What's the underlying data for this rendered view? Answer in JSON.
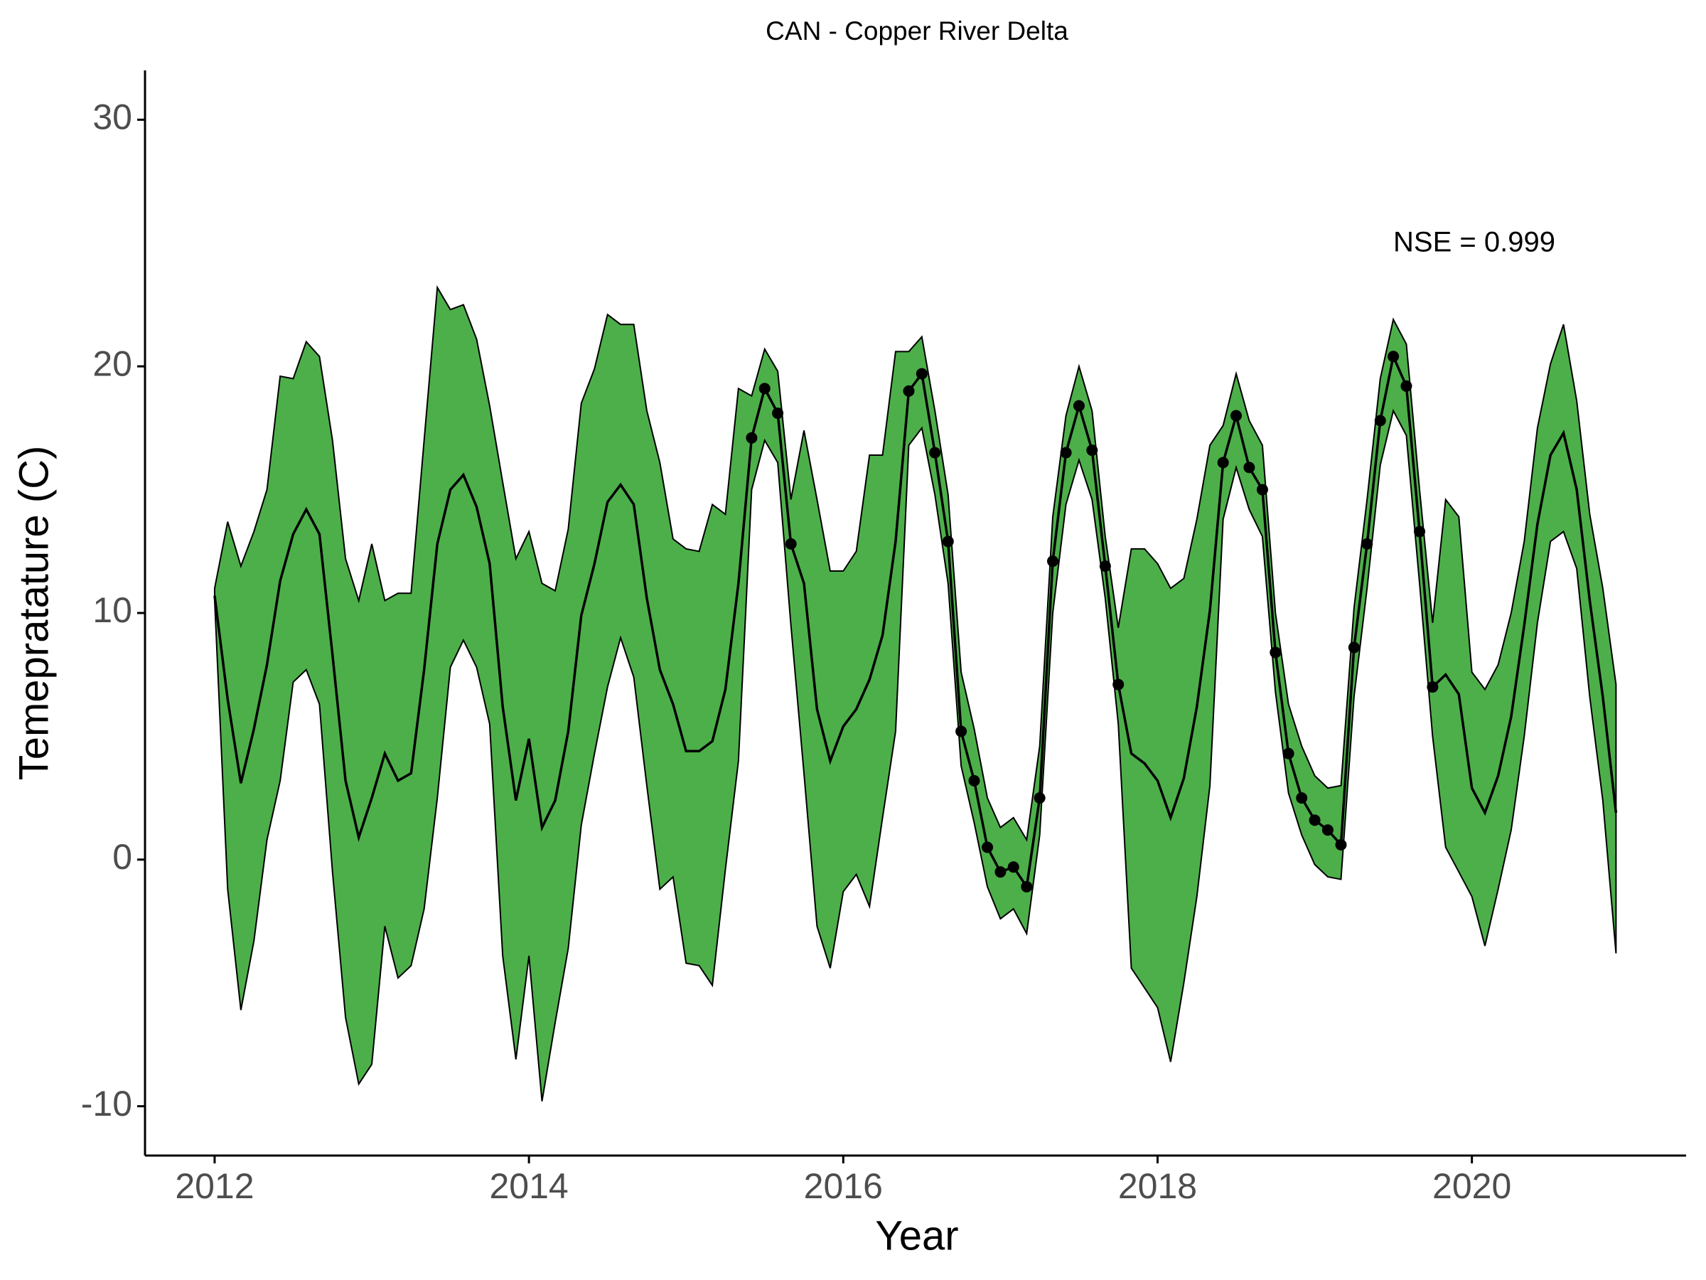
{
  "chart_data": {
    "type": "line",
    "title": "CAN - Copper River Delta",
    "x_label": "Year",
    "y_label": "Temepratature (C)",
    "annotation": "NSE = 0.999",
    "band_color": "#4daf4a",
    "line_color": "#000000",
    "xlim": [
      2011.557,
      2021.363
    ],
    "xticks": [
      2012,
      2014,
      2016,
      2018,
      2020
    ],
    "ylim": [
      -12,
      32
    ],
    "yticks": [
      -10,
      0,
      10,
      20,
      30
    ],
    "x": [
      2012,
      2012.083,
      2012.167,
      2012.25,
      2012.333,
      2012.417,
      2012.5,
      2012.583,
      2012.667,
      2012.75,
      2012.833,
      2012.917,
      2013,
      2013.083,
      2013.167,
      2013.25,
      2013.333,
      2013.417,
      2013.5,
      2013.583,
      2013.667,
      2013.75,
      2013.833,
      2013.917,
      2014,
      2014.083,
      2014.167,
      2014.25,
      2014.333,
      2014.417,
      2014.5,
      2014.583,
      2014.667,
      2014.75,
      2014.833,
      2014.917,
      2015,
      2015.083,
      2015.167,
      2015.25,
      2015.333,
      2015.417,
      2015.5,
      2015.583,
      2015.667,
      2015.75,
      2015.833,
      2015.917,
      2016,
      2016.083,
      2016.167,
      2016.25,
      2016.333,
      2016.417,
      2016.5,
      2016.583,
      2016.667,
      2016.75,
      2016.833,
      2016.917,
      2017,
      2017.083,
      2017.167,
      2017.25,
      2017.333,
      2017.417,
      2017.5,
      2017.583,
      2017.667,
      2017.75,
      2017.833,
      2017.917,
      2018,
      2018.083,
      2018.167,
      2018.25,
      2018.333,
      2018.417,
      2018.5,
      2018.583,
      2018.667,
      2018.75,
      2018.833,
      2018.917,
      2019,
      2019.083,
      2019.167,
      2019.25,
      2019.333,
      2019.417,
      2019.5,
      2019.583,
      2019.667,
      2019.75,
      2019.833,
      2019.917,
      2020,
      2020.083,
      2020.167,
      2020.25,
      2020.333,
      2020.417,
      2020.5,
      2020.583,
      2020.667,
      2020.75,
      2020.833,
      2020.917
    ],
    "series": [
      {
        "role": "mean",
        "values": [
          10.7,
          6.5,
          3.1,
          5.3,
          7.9,
          11.3,
          13.2,
          14.2,
          13.2,
          8.3,
          3.2,
          0.9,
          2.5,
          4.3,
          3.2,
          3.5,
          7.7,
          12.8,
          15.0,
          15.6,
          14.3,
          12.0,
          6.2,
          2.4,
          4.9,
          1.3,
          2.4,
          5.2,
          9.9,
          12.0,
          14.5,
          15.2,
          14.4,
          10.6,
          7.7,
          6.3,
          4.4,
          4.4,
          4.8,
          6.9,
          11.2,
          17.1,
          19.1,
          18.1,
          12.8,
          11.2,
          6.1,
          4.0,
          5.4,
          6.1,
          7.3,
          9.1,
          12.9,
          19.0,
          19.7,
          16.5,
          12.9,
          5.2,
          3.2,
          0.5,
          -0.5,
          -0.3,
          -1.1,
          2.5,
          12.1,
          16.5,
          18.4,
          16.6,
          11.9,
          7.1,
          4.3,
          3.9,
          3.2,
          1.7,
          3.3,
          6.2,
          10.1,
          16.1,
          18.0,
          15.9,
          15.0,
          8.4,
          4.3,
          2.5,
          1.6,
          1.2,
          0.6,
          8.6,
          12.8,
          17.8,
          20.4,
          19.2,
          13.3,
          7.0,
          7.5,
          6.7,
          2.9,
          1.9,
          3.4,
          5.8,
          9.5,
          13.6,
          16.4,
          17.3,
          15.0,
          10.5,
          6.6,
          1.9
        ]
      },
      {
        "role": "upper",
        "values": [
          11.0,
          13.7,
          11.9,
          13.3,
          15.0,
          19.6,
          19.5,
          21.0,
          20.4,
          17.0,
          12.2,
          10.5,
          12.8,
          10.5,
          10.8,
          10.8,
          17.0,
          23.2,
          22.3,
          22.5,
          21.1,
          18.4,
          15.3,
          12.2,
          13.3,
          11.2,
          10.9,
          13.4,
          18.5,
          19.9,
          22.1,
          21.7,
          21.7,
          18.2,
          16.1,
          13.0,
          12.6,
          12.5,
          14.4,
          14.0,
          19.1,
          18.8,
          20.7,
          19.8,
          14.6,
          17.4,
          14.6,
          11.7,
          11.7,
          12.5,
          16.4,
          16.4,
          20.6,
          20.6,
          21.2,
          18.2,
          14.8,
          7.6,
          5.3,
          2.5,
          1.3,
          1.7,
          0.8,
          4.6,
          13.9,
          18.0,
          20.0,
          18.2,
          13.1,
          9.4,
          12.6,
          12.6,
          12.0,
          11.0,
          11.4,
          13.8,
          16.8,
          17.6,
          19.7,
          17.8,
          16.8,
          10.0,
          6.3,
          4.6,
          3.4,
          2.9,
          3.0,
          10.2,
          14.6,
          19.5,
          21.9,
          20.9,
          15.0,
          9.6,
          14.6,
          13.9,
          7.6,
          6.9,
          7.9,
          10.0,
          12.9,
          17.5,
          20.1,
          21.7,
          18.6,
          14.0,
          11.0,
          7.1
        ]
      },
      {
        "role": "lower",
        "values": [
          10.5,
          -1.2,
          -6.1,
          -3.3,
          0.8,
          3.2,
          7.2,
          7.7,
          6.3,
          -0.5,
          -6.4,
          -9.1,
          -8.3,
          -2.7,
          -4.8,
          -4.3,
          -2.0,
          2.5,
          7.8,
          8.9,
          7.8,
          5.5,
          -3.9,
          -8.1,
          -3.9,
          -9.8,
          -6.6,
          -3.6,
          1.4,
          4.3,
          7.0,
          9.0,
          7.4,
          3.0,
          -1.2,
          -0.7,
          -4.2,
          -4.3,
          -5.1,
          -0.4,
          4.0,
          15.0,
          17.0,
          16.1,
          9.5,
          3.5,
          -2.7,
          -4.4,
          -1.3,
          -0.6,
          -1.9,
          1.7,
          5.2,
          16.8,
          17.5,
          14.8,
          11.2,
          3.8,
          1.5,
          -1.1,
          -2.4,
          -2.0,
          -3.0,
          1.0,
          10.0,
          14.4,
          16.2,
          14.6,
          10.6,
          5.5,
          -4.4,
          -5.2,
          -6.0,
          -8.2,
          -5.0,
          -1.5,
          3.0,
          13.8,
          15.9,
          14.2,
          13.1,
          6.8,
          2.7,
          1.0,
          -0.2,
          -0.7,
          -0.8,
          6.6,
          11.0,
          16.0,
          18.2,
          17.2,
          11.2,
          5.0,
          0.5,
          -0.5,
          -1.5,
          -3.5,
          -1.2,
          1.2,
          5.0,
          9.6,
          12.9,
          13.3,
          11.8,
          6.6,
          2.4,
          -3.8
        ]
      },
      {
        "role": "observed",
        "values": [
          null,
          null,
          null,
          null,
          null,
          null,
          null,
          null,
          null,
          null,
          null,
          null,
          null,
          null,
          null,
          null,
          null,
          null,
          null,
          null,
          null,
          null,
          null,
          null,
          null,
          null,
          null,
          null,
          null,
          null,
          null,
          null,
          null,
          null,
          null,
          null,
          null,
          null,
          null,
          null,
          null,
          17.1,
          19.1,
          18.1,
          12.8,
          null,
          null,
          null,
          null,
          null,
          null,
          null,
          null,
          19.0,
          19.7,
          16.5,
          12.9,
          5.2,
          3.2,
          0.5,
          -0.5,
          -0.3,
          -1.1,
          2.5,
          12.1,
          16.5,
          18.4,
          16.6,
          11.9,
          7.1,
          null,
          null,
          null,
          null,
          null,
          null,
          null,
          16.1,
          18.0,
          15.9,
          15.0,
          8.4,
          4.3,
          2.5,
          1.6,
          1.2,
          0.6,
          8.6,
          12.8,
          17.8,
          20.4,
          19.2,
          13.3,
          7.0,
          null,
          null,
          null,
          null,
          null,
          null,
          null,
          null,
          null,
          null,
          null,
          null,
          null,
          null
        ]
      }
    ]
  }
}
